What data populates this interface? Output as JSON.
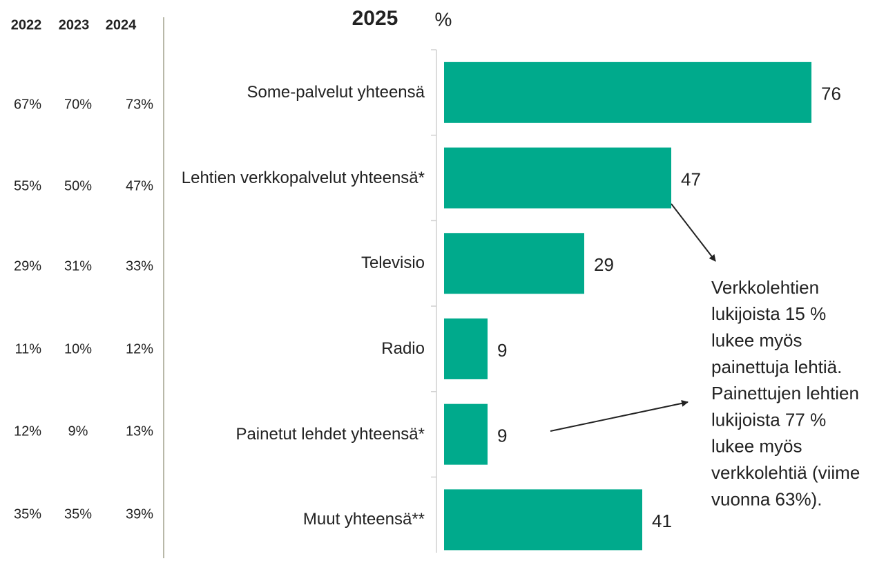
{
  "chart_data": {
    "type": "barh",
    "title": "2025",
    "unit": "%",
    "categories": [
      "Some-palvelut yhteensä",
      "Lehtien verkkopalvelut yhteensä*",
      "Televisio",
      "Radio",
      "Painetut lehdet yhteensä*",
      "Muut yhteensä**"
    ],
    "values": [
      76,
      47,
      29,
      9,
      9,
      41
    ],
    "color": "#00aa8c"
  },
  "history": {
    "years": [
      "2022",
      "2023",
      "2024"
    ],
    "rows": [
      [
        "67%",
        "70%",
        "73%"
      ],
      [
        "55%",
        "50%",
        "47%"
      ],
      [
        "29%",
        "31%",
        "33%"
      ],
      [
        "11%",
        "10%",
        "12%"
      ],
      [
        "12%",
        "9%",
        "13%"
      ],
      [
        "35%",
        "35%",
        "39%"
      ]
    ]
  },
  "annotation": [
    "Verkkolehtien",
    "lukijoista 15 %",
    "lukee myös",
    "painettuja lehtiä.",
    "Painettujen lehtien",
    "lukijoista 77 %",
    "lukee myös",
    "verkkolehtiä (viime",
    "vuonna 63%)."
  ]
}
